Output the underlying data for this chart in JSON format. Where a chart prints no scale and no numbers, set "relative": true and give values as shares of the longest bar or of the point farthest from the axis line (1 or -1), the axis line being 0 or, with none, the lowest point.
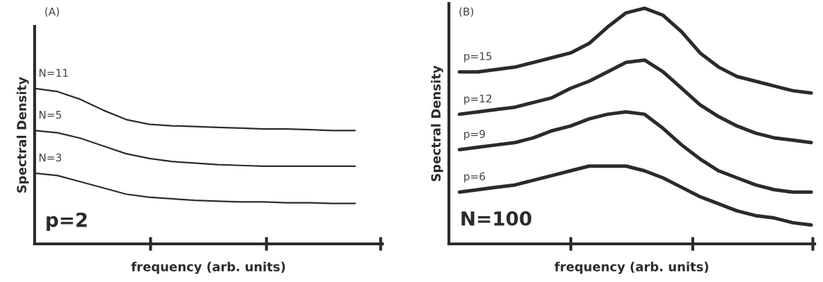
{
  "chart_data": [
    {
      "type": "line",
      "relative": true,
      "xlabel": "frequency (arb. units)",
      "ylabel": "Spectral Density",
      "annotations": [
        "(A)",
        "p=2"
      ],
      "categories": [
        null,
        null,
        null,
        null,
        null,
        null,
        null,
        null,
        null,
        null,
        null,
        null,
        null,
        null,
        null
      ],
      "series": [
        {
          "name": "N=11",
          "color": "#2b2b2b",
          "values": [
            1.0,
            0.98,
            0.93,
            0.86,
            0.8,
            0.77,
            0.76,
            0.755,
            0.75,
            0.745,
            0.74,
            0.74,
            0.735,
            0.73,
            0.73
          ]
        },
        {
          "name": "N=5",
          "color": "#2b2b2b",
          "values": [
            0.73,
            0.715,
            0.68,
            0.63,
            0.58,
            0.55,
            0.53,
            0.52,
            0.51,
            0.505,
            0.5,
            0.5,
            0.5,
            0.5,
            0.5
          ]
        },
        {
          "name": "N=3",
          "color": "#2b2b2b",
          "values": [
            0.455,
            0.44,
            0.4,
            0.36,
            0.32,
            0.3,
            0.29,
            0.28,
            0.275,
            0.27,
            0.27,
            0.265,
            0.265,
            0.26,
            0.26
          ]
        }
      ],
      "marker": "none",
      "line_style": "solid",
      "grid": false,
      "legend": false
    },
    {
      "type": "line",
      "relative": true,
      "xlabel": "frequency (arb. units)",
      "ylabel": "Spectral Density",
      "annotations": [
        "(B)",
        "N=100"
      ],
      "categories": [
        null,
        null,
        null,
        null,
        null,
        null,
        null,
        null,
        null,
        null,
        null,
        null,
        null,
        null,
        null,
        null,
        null,
        null,
        null,
        null
      ],
      "series": [
        {
          "name": "p=15",
          "color": "#2b2b2b",
          "values": [
            0.73,
            0.73,
            0.74,
            0.75,
            0.77,
            0.79,
            0.81,
            0.85,
            0.92,
            0.98,
            1.0,
            0.97,
            0.9,
            0.81,
            0.75,
            0.71,
            0.69,
            0.67,
            0.65,
            0.64
          ]
        },
        {
          "name": "p=12",
          "color": "#2b2b2b",
          "values": [
            0.55,
            0.56,
            0.57,
            0.58,
            0.6,
            0.62,
            0.66,
            0.69,
            0.73,
            0.77,
            0.78,
            0.73,
            0.66,
            0.59,
            0.54,
            0.5,
            0.47,
            0.45,
            0.44,
            0.43
          ]
        },
        {
          "name": "p=9",
          "color": "#2b2b2b",
          "values": [
            0.4,
            0.41,
            0.42,
            0.43,
            0.45,
            0.48,
            0.5,
            0.53,
            0.55,
            0.56,
            0.55,
            0.49,
            0.42,
            0.36,
            0.31,
            0.28,
            0.25,
            0.23,
            0.22,
            0.22
          ]
        },
        {
          "name": "p=6",
          "color": "#2b2b2b",
          "values": [
            0.22,
            0.23,
            0.24,
            0.25,
            0.27,
            0.29,
            0.31,
            0.33,
            0.33,
            0.33,
            0.31,
            0.28,
            0.24,
            0.2,
            0.17,
            0.14,
            0.12,
            0.11,
            0.09,
            0.08
          ]
        }
      ],
      "marker": "none",
      "line_style": "solid",
      "grid": false,
      "legend": false
    }
  ]
}
